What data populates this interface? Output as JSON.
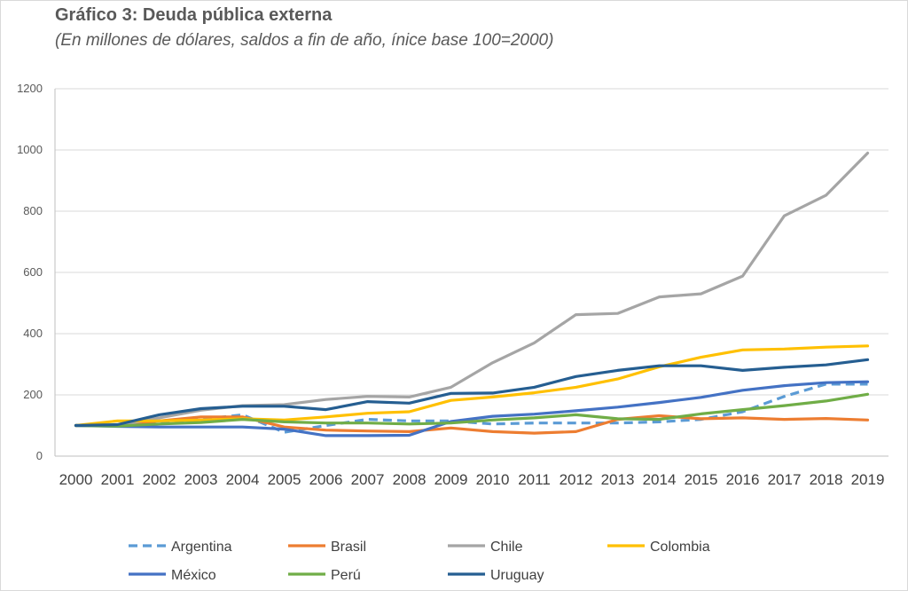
{
  "title": "Gráfico 3: Deuda pública externa",
  "subtitle": "(En millones de dólares, saldos a fin de año, ínice base 100=2000)",
  "chart_data": {
    "type": "line",
    "title": "Gráfico 3: Deuda pública externa",
    "subtitle": "(En millones de dólares, saldos a fin de año, ínice base 100=2000)",
    "xlabel": "",
    "ylabel": "",
    "ylim": [
      0,
      1200
    ],
    "yticks": [
      0,
      200,
      400,
      600,
      800,
      1000,
      1200
    ],
    "grid": true,
    "legend_position": "bottom",
    "x": [
      "2000",
      "2001",
      "2002",
      "2003",
      "2004",
      "2005",
      "2006",
      "2007",
      "2008",
      "2009",
      "2010",
      "2011",
      "2012",
      "2013",
      "2014",
      "2015",
      "2016",
      "2017",
      "2018",
      "2019"
    ],
    "series": [
      {
        "name": "Argentina",
        "color": "#5b9bd5",
        "dashed": true,
        "values": [
          100,
          100,
          110,
          120,
          135,
          78,
          100,
          120,
          115,
          115,
          105,
          108,
          108,
          108,
          112,
          120,
          145,
          195,
          235,
          235
        ]
      },
      {
        "name": "Brasil",
        "color": "#ed7d31",
        "dashed": false,
        "values": [
          100,
          100,
          115,
          128,
          128,
          95,
          85,
          82,
          80,
          92,
          80,
          75,
          80,
          120,
          132,
          122,
          125,
          120,
          123,
          118
        ]
      },
      {
        "name": "Chile",
        "color": "#a5a5a5",
        "dashed": false,
        "values": [
          100,
          100,
          125,
          150,
          165,
          168,
          185,
          195,
          193,
          225,
          305,
          370,
          462,
          466,
          520,
          530,
          588,
          785,
          852,
          990
        ]
      },
      {
        "name": "Colombia",
        "color": "#ffc000",
        "dashed": false,
        "values": [
          100,
          115,
          115,
          118,
          122,
          118,
          128,
          140,
          145,
          182,
          193,
          207,
          225,
          252,
          292,
          323,
          347,
          350,
          356,
          360
        ]
      },
      {
        "name": "México",
        "color": "#4472c4",
        "dashed": false,
        "values": [
          100,
          97,
          95,
          95,
          95,
          88,
          67,
          67,
          68,
          113,
          130,
          137,
          148,
          160,
          175,
          192,
          215,
          230,
          240,
          243
        ]
      },
      {
        "name": "Perú",
        "color": "#70ad47",
        "dashed": false,
        "values": [
          100,
          98,
          105,
          110,
          120,
          112,
          108,
          108,
          105,
          108,
          118,
          125,
          135,
          122,
          120,
          138,
          152,
          165,
          180,
          202
        ]
      },
      {
        "name": "Uruguay",
        "color": "#255e91",
        "dashed": false,
        "values": [
          100,
          103,
          135,
          155,
          163,
          163,
          152,
          178,
          173,
          205,
          206,
          225,
          260,
          280,
          295,
          295,
          280,
          290,
          298,
          315
        ]
      }
    ]
  }
}
